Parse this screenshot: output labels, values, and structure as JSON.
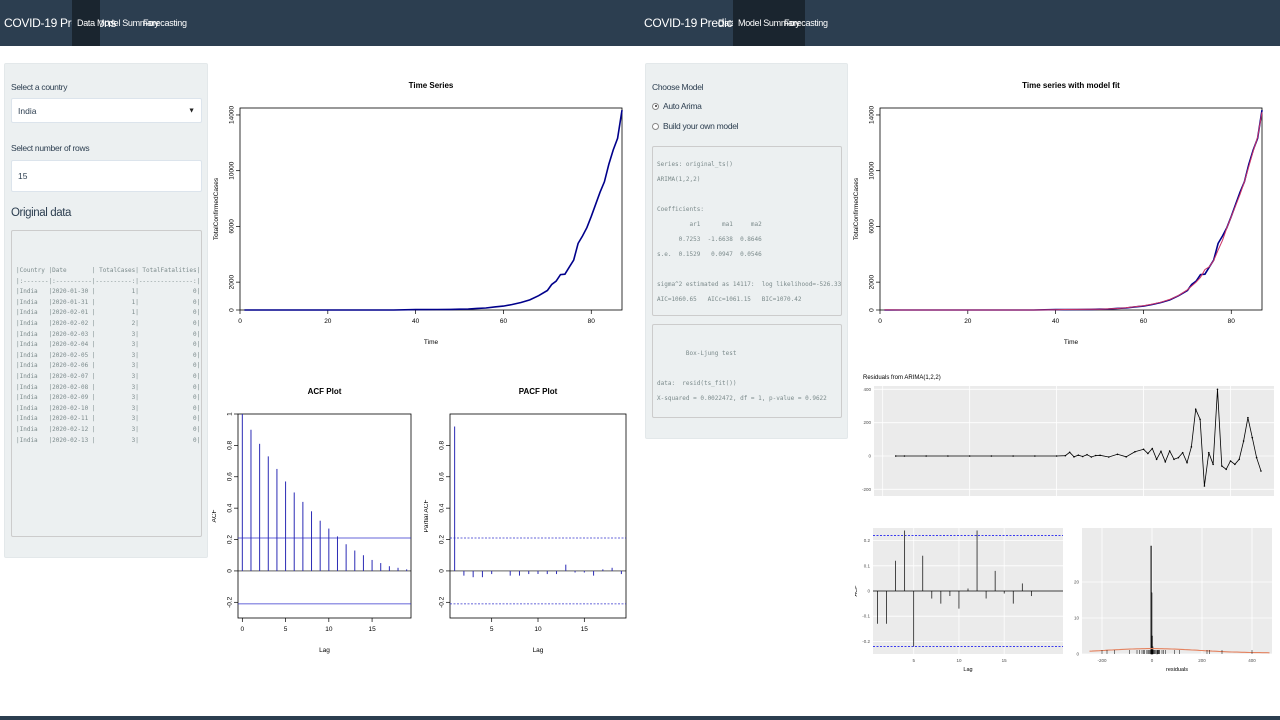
{
  "left": {
    "nav": {
      "brand": "COVID-19 Predictions",
      "tabs": [
        "Data",
        "Model Summary",
        "Forecasting"
      ],
      "active_tab": "Data"
    },
    "sidebar": {
      "country_label": "Select a country",
      "country_value": "India",
      "rows_label": "Select number of rows",
      "rows_value": "15",
      "original_data_title": "Original data",
      "table_lines": [
        "|Country |Date       | TotalCases| TotalFatalities|",
        "|:-------|:----------|----------:|---------------:|",
        "|India   |2020-01-30 |          1|               0|",
        "|India   |2020-01-31 |          1|               0|",
        "|India   |2020-02-01 |          1|               0|",
        "|India   |2020-02-02 |          2|               0|",
        "|India   |2020-02-03 |          3|               0|",
        "|India   |2020-02-04 |          3|               0|",
        "|India   |2020-02-05 |          3|               0|",
        "|India   |2020-02-06 |          3|               0|",
        "|India   |2020-02-07 |          3|               0|",
        "|India   |2020-02-08 |          3|               0|",
        "|India   |2020-02-09 |          3|               0|",
        "|India   |2020-02-10 |          3|               0|",
        "|India   |2020-02-11 |          3|               0|",
        "|India   |2020-02-12 |          3|               0|",
        "|India   |2020-02-13 |          3|               0|"
      ]
    }
  },
  "right": {
    "nav": {
      "brand": "COVID-19 Predictions",
      "tabs": [
        "Data",
        "Model Summary",
        "Forecasting"
      ],
      "active_tab": "Model Summary"
    },
    "sidebar": {
      "choose_model_label": "Choose Model",
      "options": [
        {
          "label": "Auto Arima",
          "selected": true
        },
        {
          "label": "Build your own model",
          "selected": false
        }
      ],
      "summary_lines": [
        "Series: original_ts()",
        "ARIMA(1,2,2)",
        "",
        "Coefficients:",
        "         ar1      ma1     ma2",
        "      0.7253  -1.6638  0.8646",
        "s.e.  0.1529   0.0947  0.0546",
        "",
        "sigma^2 estimated as 14117:  log likelihood=-526.33",
        "AIC=1060.65   AICc=1061.15   BIC=1070.42"
      ],
      "box_lines": [
        "",
        "        Box-Ljung test",
        "",
        "data:  resid(ts_fit())",
        "X-squared = 0.0022472, df = 1, p-value = 0.9622"
      ]
    }
  },
  "chart_data": [
    {
      "id": "time-series",
      "type": "line",
      "title": "Time Series",
      "xlabel": "Time",
      "ylabel": "TotalConfirmedCases",
      "xlim": [
        0,
        87
      ],
      "ylim": [
        0,
        14500
      ],
      "xticks": [
        0,
        20,
        40,
        60,
        80
      ],
      "yticks": [
        0,
        2000,
        6000,
        10000,
        14000
      ],
      "series": [
        {
          "color": "#00008b",
          "x": [
            1,
            5,
            10,
            15,
            20,
            25,
            30,
            35,
            40,
            42,
            45,
            48,
            50,
            52,
            54,
            56,
            58,
            60,
            62,
            64,
            66,
            68,
            70,
            71,
            72,
            73,
            74,
            75,
            76,
            77,
            78,
            79,
            80,
            81,
            82,
            83,
            84,
            85,
            86,
            87
          ],
          "y": [
            1,
            3,
            3,
            3,
            3,
            3,
            3,
            3,
            28,
            31,
            39,
            43,
            60,
            73,
            114,
            147,
            223,
            283,
            396,
            536,
            724,
            1024,
            1397,
            1834,
            2069,
            2543,
            2567,
            3082,
            3588,
            4778,
            5311,
            5916,
            6725,
            7598,
            8446,
            9205,
            10453,
            11487,
            12322,
            14352
          ]
        }
      ]
    },
    {
      "id": "acf-plot",
      "type": "bar",
      "title": "ACF Plot",
      "xlabel": "Lag",
      "ylabel": "ACF",
      "xlim": [
        -0.5,
        19.5
      ],
      "ylim": [
        -0.3,
        1.0
      ],
      "xticks": [
        0,
        5,
        10,
        15
      ],
      "yticks": [
        -0.2,
        0.0,
        0.2,
        0.4,
        0.6,
        0.8,
        1.0
      ],
      "ci": 0.21,
      "x": [
        0,
        1,
        2,
        3,
        4,
        5,
        6,
        7,
        8,
        9,
        10,
        11,
        12,
        13,
        14,
        15,
        16,
        17,
        18,
        19
      ],
      "values": [
        1.0,
        0.9,
        0.81,
        0.73,
        0.65,
        0.57,
        0.5,
        0.44,
        0.38,
        0.32,
        0.27,
        0.22,
        0.17,
        0.13,
        0.1,
        0.07,
        0.05,
        0.03,
        0.02,
        0.01
      ]
    },
    {
      "id": "pacf-plot",
      "type": "bar",
      "title": "PACF Plot",
      "xlabel": "Lag",
      "ylabel": "Partial ACF",
      "xlim": [
        0.5,
        19.5
      ],
      "ylim": [
        -0.3,
        1.0
      ],
      "xticks": [
        5,
        10,
        15
      ],
      "yticks": [
        -0.2,
        0.0,
        0.2,
        0.4,
        0.6,
        0.8
      ],
      "ci": 0.21,
      "x": [
        1,
        2,
        3,
        4,
        5,
        6,
        7,
        8,
        9,
        10,
        11,
        12,
        13,
        14,
        15,
        16,
        17,
        18,
        19
      ],
      "values": [
        0.92,
        -0.03,
        -0.04,
        -0.04,
        -0.02,
        0.0,
        -0.03,
        -0.03,
        -0.02,
        -0.02,
        -0.02,
        -0.02,
        0.04,
        -0.01,
        -0.01,
        -0.03,
        0.01,
        0.02,
        -0.02
      ]
    },
    {
      "id": "time-series-fit",
      "type": "line",
      "title": "Time series with model fit",
      "xlabel": "Time",
      "ylabel": "TotalConfirmedCases",
      "xlim": [
        0,
        87
      ],
      "ylim": [
        0,
        14500
      ],
      "xticks": [
        0,
        20,
        40,
        60,
        80
      ],
      "yticks": [
        0,
        2000,
        6000,
        10000,
        14000
      ],
      "series": [
        {
          "color": "#00008b",
          "x": [
            1,
            5,
            10,
            15,
            20,
            25,
            30,
            35,
            40,
            42,
            45,
            48,
            50,
            52,
            54,
            56,
            58,
            60,
            62,
            64,
            66,
            68,
            70,
            71,
            72,
            73,
            74,
            75,
            76,
            77,
            78,
            79,
            80,
            81,
            82,
            83,
            84,
            85,
            86,
            87
          ],
          "y": [
            1,
            3,
            3,
            3,
            3,
            3,
            3,
            3,
            28,
            31,
            39,
            43,
            60,
            73,
            114,
            147,
            223,
            283,
            396,
            536,
            724,
            1024,
            1397,
            1834,
            2069,
            2543,
            2567,
            3082,
            3588,
            4778,
            5311,
            5916,
            6725,
            7598,
            8446,
            9205,
            10453,
            11487,
            12322,
            14352
          ]
        },
        {
          "color": "#cc3366",
          "x": [
            1,
            5,
            10,
            15,
            20,
            25,
            30,
            35,
            40,
            42,
            45,
            48,
            50,
            52,
            54,
            56,
            58,
            60,
            62,
            64,
            66,
            68,
            70,
            71,
            72,
            73,
            74,
            75,
            76,
            77,
            78,
            79,
            80,
            81,
            82,
            83,
            84,
            85,
            86,
            87
          ],
          "y": [
            5,
            3,
            3,
            3,
            3,
            3,
            3,
            3,
            20,
            35,
            42,
            47,
            55,
            80,
            110,
            160,
            230,
            300,
            420,
            560,
            760,
            1050,
            1450,
            1720,
            2000,
            2350,
            2900,
            3100,
            3550,
            4300,
            5000,
            5900,
            6700,
            7500,
            8300,
            9200,
            10300,
            11400,
            12400,
            14200
          ]
        }
      ]
    },
    {
      "id": "residuals-plot",
      "type": "line",
      "title": "Residuals from ARIMA(1,2,2)",
      "xlim": [
        -2,
        90
      ],
      "ylim": [
        -240,
        420
      ],
      "xticks": [
        0,
        20,
        40,
        60,
        80
      ],
      "yticks": [
        -200,
        0,
        200,
        400
      ],
      "series": [
        {
          "color": "#000000",
          "x": [
            3,
            5,
            10,
            15,
            20,
            25,
            30,
            35,
            40,
            42,
            43,
            44,
            45,
            46,
            47,
            48,
            49,
            50,
            52,
            54,
            56,
            58,
            60,
            61,
            62,
            63,
            64,
            65,
            66,
            67,
            68,
            69,
            70,
            71,
            72,
            73,
            74,
            75,
            76,
            77,
            78,
            79,
            80,
            81,
            82,
            83,
            84,
            85,
            86,
            87
          ],
          "y": [
            0,
            0,
            0,
            0,
            0,
            0,
            0,
            0,
            0,
            2,
            22,
            -5,
            5,
            -3,
            8,
            -6,
            3,
            4,
            -6,
            10,
            -5,
            25,
            40,
            15,
            45,
            -20,
            28,
            -35,
            30,
            -20,
            -10,
            20,
            -40,
            55,
            280,
            220,
            -180,
            20,
            -50,
            400,
            -60,
            -80,
            -30,
            -50,
            -20,
            90,
            230,
            110,
            -10,
            -90
          ]
        }
      ]
    },
    {
      "id": "residuals-acf",
      "type": "bar",
      "xlabel": "Lag",
      "ylabel": "ACF",
      "xlim": [
        0.5,
        21.5
      ],
      "ylim": [
        -0.25,
        0.25
      ],
      "xticks": [
        5,
        10,
        15
      ],
      "yticks": [
        -0.2,
        -0.1,
        0.0,
        0.1,
        0.2
      ],
      "ci": 0.22,
      "x": [
        1,
        2,
        3,
        4,
        5,
        6,
        7,
        8,
        9,
        10,
        11,
        12,
        13,
        14,
        15,
        16,
        17,
        18,
        19,
        20,
        21
      ],
      "values": [
        -0.13,
        -0.13,
        0.12,
        0.24,
        -0.22,
        0.14,
        -0.03,
        -0.05,
        -0.02,
        -0.07,
        0.01,
        0.24,
        -0.03,
        0.08,
        -0.01,
        -0.05,
        0.03,
        -0.02,
        0.0,
        0.0,
        0.0
      ]
    },
    {
      "id": "residuals-histogram",
      "type": "bar",
      "xlabel": "residuals",
      "ylabel": "count",
      "xlim": [
        -280,
        480
      ],
      "ylim": [
        0,
        35
      ],
      "xticks": [
        -200,
        0,
        200,
        400
      ],
      "yticks": [
        0,
        10,
        20
      ],
      "bins": [
        {
          "x": -4,
          "count": 30
        },
        {
          "x": -2,
          "count": 17
        },
        {
          "x": 0,
          "count": 5
        },
        {
          "x": 2,
          "count": 2
        },
        {
          "x": 20,
          "count": 1
        }
      ]
    }
  ]
}
